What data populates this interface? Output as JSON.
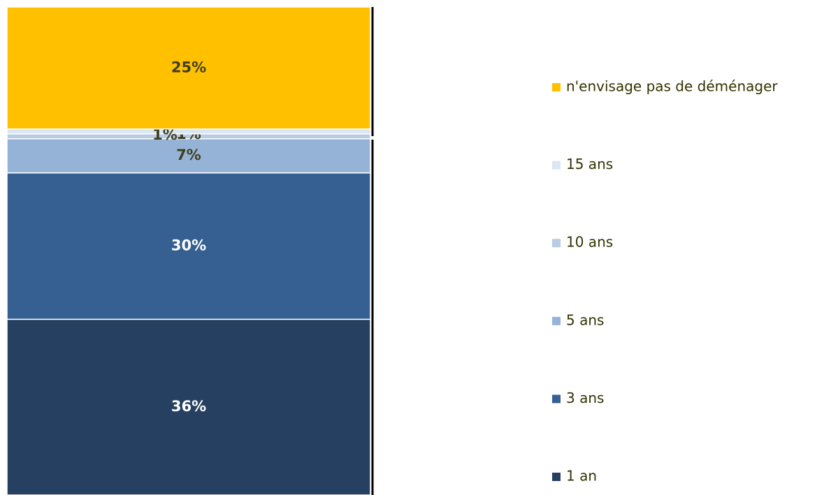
{
  "chart_data": {
    "type": "stacked-bar",
    "series": [
      {
        "name": "1 an",
        "color": "#264061",
        "values": [
          36
        ],
        "value_labels": [
          "36%"
        ]
      },
      {
        "name": "3 ans",
        "color": "#366092",
        "values": [
          30
        ],
        "value_labels": [
          "30%"
        ]
      },
      {
        "name": "5 ans",
        "color": "#95b3d7",
        "values": [
          7
        ],
        "value_labels": [
          "7%"
        ]
      },
      {
        "name": "10 ans",
        "color": "#b8cce4",
        "values": [
          1
        ],
        "value_labels": [
          "1%"
        ]
      },
      {
        "name": "15 ans",
        "color": "#dce6f1",
        "values": [
          1
        ],
        "value_labels": [
          "1%"
        ]
      },
      {
        "name": "n'envisage pas de déménager",
        "color": "#ffc000",
        "values": [
          25
        ],
        "value_labels": [
          "25%"
        ]
      }
    ],
    "ylim": [
      0,
      100
    ]
  }
}
